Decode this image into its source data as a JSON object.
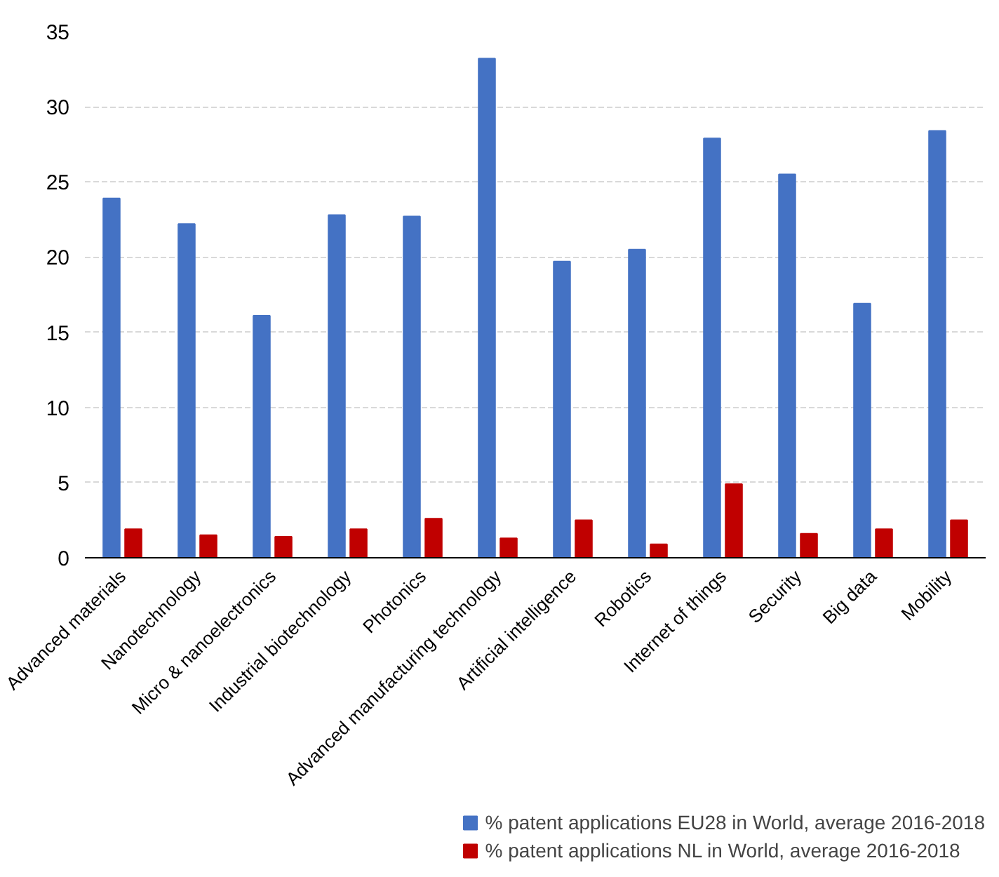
{
  "chart_data": {
    "type": "bar",
    "categories": [
      "Advanced materials",
      "Nanotechnology",
      "Micro & nanoelectronics",
      "Industrial biotechnology",
      "Photonics",
      "Advanced manufacturing technology",
      "Artificial intelligence",
      "Robotics",
      "Internet of things",
      "Security",
      "Big data",
      "Mobility"
    ],
    "series": [
      {
        "name": "% patent applications EU28 in World, average 2016-2018",
        "color": "#4472c4",
        "values": [
          23.9,
          22.2,
          16.1,
          22.8,
          22.7,
          33.2,
          19.7,
          20.5,
          27.9,
          25.5,
          16.9,
          28.4
        ]
      },
      {
        "name": "% patent applications NL in World, average 2016-2018",
        "color": "#c00000",
        "values": [
          1.9,
          1.5,
          1.4,
          1.9,
          2.6,
          1.3,
          2.5,
          0.9,
          4.9,
          1.6,
          1.9,
          2.5
        ]
      }
    ],
    "ylim": [
      0,
      35
    ],
    "yticks": [
      0,
      5,
      10,
      15,
      20,
      25,
      30,
      35
    ],
    "grid": "y",
    "legend": "bottom right"
  }
}
